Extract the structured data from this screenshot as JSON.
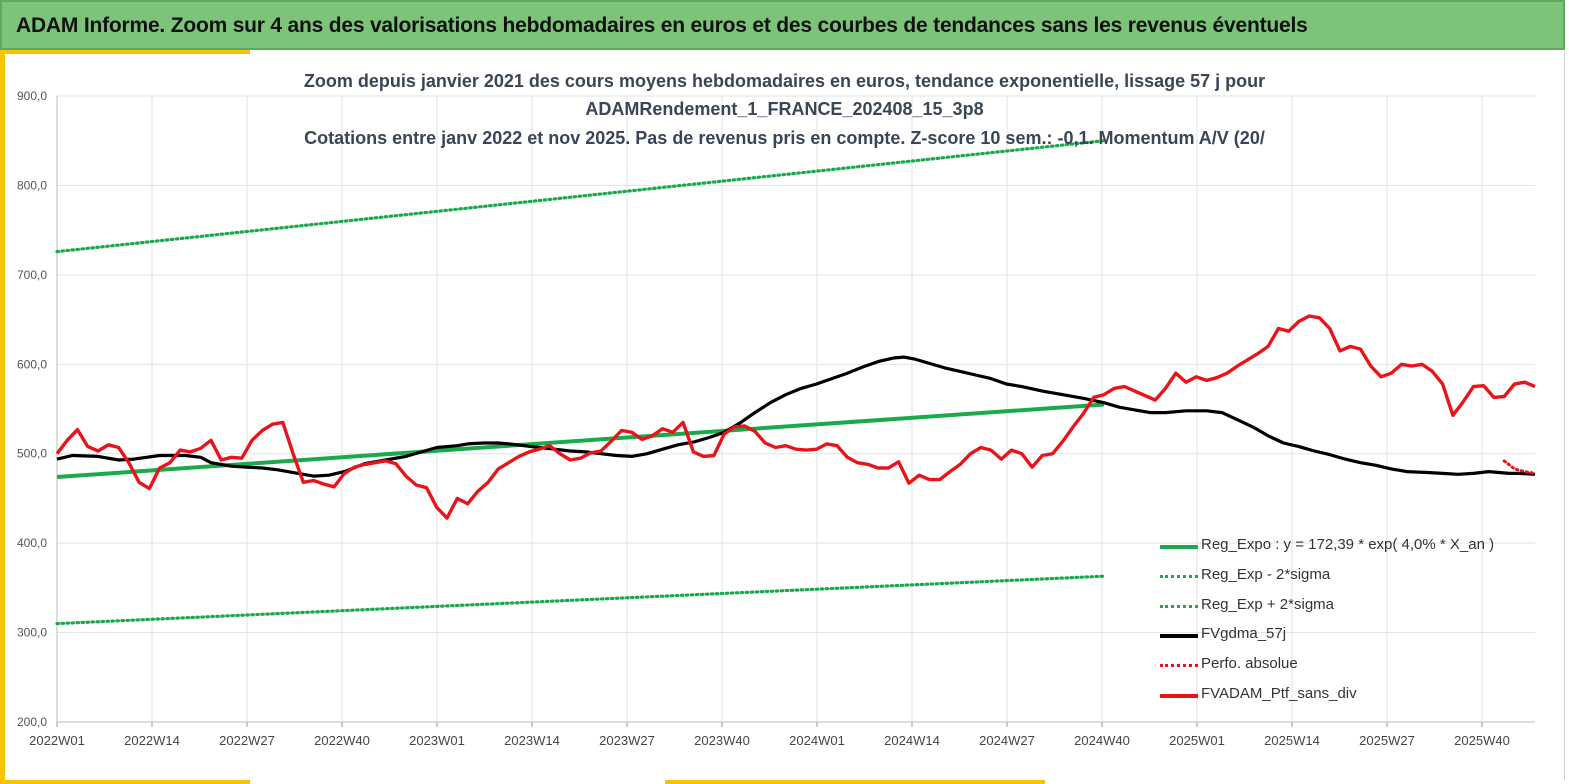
{
  "header": {
    "title": "ADAM Informe. Zoom sur 4 ans des valorisations hebdomadaires en euros et des courbes de tendances sans les revenus éventuels"
  },
  "colors": {
    "banner": "#7dc47a",
    "accent": "#f5c400",
    "trend": "#1aaa4b",
    "sigma": "#1aaa4b",
    "mma": "#000000",
    "perf": "#e8141a",
    "portfolio": "#e8141a",
    "grid": "#e2e2e2"
  },
  "chart_data": {
    "type": "line",
    "title_lines": [
      "Zoom depuis janvier 2021 des cours moyens hebdomadaires  en euros, tendance exponentielle, lissage 57 j pour",
      "ADAMRendement_1_FRANCE_202408_15_3p8",
      "Cotations entre janv 2022 et nov 2025. Pas de revenus pris en compte. Z-score 10 sem.: -0,1. Momentum A/V (20/"
    ],
    "xlabel": "",
    "ylabel": "",
    "ylim": [
      200,
      900
    ],
    "yticks": [
      "900,0",
      "800,0",
      "700,0",
      "600,0",
      "500,0",
      "400,0",
      "300,0",
      "200,0"
    ],
    "x_tick_labels": [
      "2022W01",
      "2022W14",
      "2022W27",
      "2022W40",
      "2023W01",
      "2023W14",
      "2023W27",
      "2023W40",
      "2024W01",
      "2024W14",
      "2024W27",
      "2024W40",
      "2025W01",
      "2025W14",
      "2025W27",
      "2025W40"
    ],
    "weeks_total": 204,
    "grid": true,
    "legend_position": "bottom-right",
    "series": [
      {
        "name": "Reg_Expo : y = 172,39 * exp( 4,0% *  X_an )",
        "style": "solid-green",
        "points": [
          [
            0,
            474
          ],
          [
            204,
            555
          ]
        ]
      },
      {
        "name": "Reg_Exp - 2*sigma",
        "style": "dotted-green",
        "points": [
          [
            0,
            310
          ],
          [
            204,
            363
          ]
        ]
      },
      {
        "name": "Reg_Exp + 2*sigma",
        "style": "dotted-green",
        "points": [
          [
            0,
            726
          ],
          [
            204,
            850
          ]
        ]
      },
      {
        "name": "FVgdma_57j",
        "style": "solid-black",
        "points": [
          [
            0,
            494
          ],
          [
            3,
            498
          ],
          [
            8,
            497
          ],
          [
            12,
            493
          ],
          [
            15,
            494
          ],
          [
            20,
            498
          ],
          [
            25,
            498
          ],
          [
            28,
            496
          ],
          [
            30,
            490
          ],
          [
            34,
            486
          ],
          [
            37,
            485
          ],
          [
            40,
            484
          ],
          [
            43,
            482
          ],
          [
            47,
            478
          ],
          [
            50,
            475
          ],
          [
            53,
            476
          ],
          [
            56,
            480
          ],
          [
            60,
            489
          ],
          [
            64,
            493
          ],
          [
            68,
            497
          ],
          [
            71,
            502
          ],
          [
            74,
            507
          ],
          [
            78,
            509
          ],
          [
            80,
            511
          ],
          [
            83,
            512
          ],
          [
            86,
            512
          ],
          [
            88,
            511
          ],
          [
            91,
            509
          ],
          [
            94,
            507
          ],
          [
            97,
            505
          ],
          [
            100,
            503
          ],
          [
            103,
            502
          ],
          [
            106,
            500
          ],
          [
            109,
            498
          ],
          [
            112,
            497
          ],
          [
            115,
            500
          ],
          [
            118,
            505
          ],
          [
            121,
            510
          ],
          [
            124,
            513
          ],
          [
            127,
            518
          ],
          [
            130,
            524
          ],
          [
            133,
            534
          ],
          [
            136,
            546
          ],
          [
            139,
            557
          ],
          [
            142,
            566
          ],
          [
            145,
            573
          ],
          [
            148,
            578
          ],
          [
            151,
            584
          ],
          [
            154,
            590
          ],
          [
            157,
            597
          ],
          [
            160,
            603
          ],
          [
            163,
            607
          ],
          [
            165,
            608
          ],
          [
            167,
            606
          ],
          [
            170,
            601
          ],
          [
            173,
            596
          ],
          [
            176,
            592
          ],
          [
            179,
            588
          ],
          [
            182,
            584
          ],
          [
            185,
            578
          ],
          [
            188,
            575
          ],
          [
            192,
            570
          ],
          [
            196,
            566
          ],
          [
            200,
            562
          ],
          [
            204,
            557
          ],
          [
            207,
            552
          ],
          [
            210,
            549
          ],
          [
            213,
            546
          ],
          [
            216,
            546
          ],
          [
            220,
            548
          ],
          [
            224,
            548
          ],
          [
            227,
            546
          ],
          [
            230,
            538
          ],
          [
            233,
            530
          ],
          [
            236,
            520
          ],
          [
            239,
            512
          ],
          [
            242,
            508
          ],
          [
            245,
            503
          ],
          [
            248,
            499
          ],
          [
            251,
            494
          ],
          [
            254,
            490
          ],
          [
            257,
            487
          ],
          [
            260,
            483
          ],
          [
            263,
            480
          ],
          [
            267,
            479
          ],
          [
            270,
            478
          ],
          [
            273,
            477
          ],
          [
            276,
            478
          ],
          [
            279,
            480
          ],
          [
            281,
            479
          ],
          [
            283,
            478
          ],
          [
            285,
            478
          ],
          [
            288,
            477
          ]
        ]
      },
      {
        "name": "Perfo. absolue",
        "style": "dotted-red",
        "points": [
          [
            282,
            492
          ],
          [
            284,
            483
          ],
          [
            286,
            480
          ],
          [
            288,
            478
          ]
        ]
      },
      {
        "name": "FVADAM_Ptf_sans_div",
        "style": "solid-red",
        "points": [
          [
            0,
            500
          ],
          [
            2,
            515
          ],
          [
            4,
            527
          ],
          [
            6,
            508
          ],
          [
            8,
            503
          ],
          [
            10,
            510
          ],
          [
            12,
            507
          ],
          [
            14,
            490
          ],
          [
            16,
            468
          ],
          [
            18,
            461
          ],
          [
            20,
            484
          ],
          [
            22,
            490
          ],
          [
            24,
            504
          ],
          [
            26,
            502
          ],
          [
            28,
            506
          ],
          [
            30,
            515
          ],
          [
            32,
            493
          ],
          [
            34,
            496
          ],
          [
            36,
            495
          ],
          [
            38,
            515
          ],
          [
            40,
            526
          ],
          [
            42,
            533
          ],
          [
            44,
            535
          ],
          [
            46,
            500
          ],
          [
            48,
            468
          ],
          [
            50,
            470
          ],
          [
            52,
            466
          ],
          [
            54,
            463
          ],
          [
            56,
            478
          ],
          [
            58,
            485
          ],
          [
            60,
            488
          ],
          [
            62,
            490
          ],
          [
            64,
            492
          ],
          [
            66,
            489
          ],
          [
            68,
            475
          ],
          [
            70,
            465
          ],
          [
            72,
            462
          ],
          [
            74,
            440
          ],
          [
            76,
            428
          ],
          [
            78,
            450
          ],
          [
            80,
            444
          ],
          [
            82,
            458
          ],
          [
            84,
            468
          ],
          [
            86,
            483
          ],
          [
            88,
            490
          ],
          [
            90,
            497
          ],
          [
            92,
            502
          ],
          [
            94,
            505
          ],
          [
            96,
            509
          ],
          [
            98,
            500
          ],
          [
            100,
            493
          ],
          [
            102,
            495
          ],
          [
            104,
            501
          ],
          [
            106,
            503
          ],
          [
            108,
            514
          ],
          [
            110,
            526
          ],
          [
            112,
            524
          ],
          [
            114,
            516
          ],
          [
            116,
            520
          ],
          [
            118,
            528
          ],
          [
            120,
            524
          ],
          [
            122,
            535
          ],
          [
            124,
            502
          ],
          [
            126,
            497
          ],
          [
            128,
            498
          ],
          [
            130,
            522
          ],
          [
            132,
            530
          ],
          [
            134,
            531
          ],
          [
            136,
            525
          ],
          [
            138,
            512
          ],
          [
            140,
            507
          ],
          [
            142,
            509
          ],
          [
            144,
            505
          ],
          [
            146,
            504
          ],
          [
            148,
            505
          ],
          [
            150,
            511
          ],
          [
            152,
            509
          ],
          [
            154,
            496
          ],
          [
            156,
            490
          ],
          [
            158,
            488
          ],
          [
            160,
            484
          ],
          [
            162,
            484
          ],
          [
            164,
            491
          ],
          [
            166,
            467
          ],
          [
            168,
            476
          ],
          [
            170,
            471
          ],
          [
            172,
            471
          ],
          [
            174,
            480
          ],
          [
            176,
            488
          ],
          [
            178,
            500
          ],
          [
            180,
            507
          ],
          [
            182,
            504
          ],
          [
            184,
            494
          ],
          [
            186,
            504
          ],
          [
            188,
            500
          ],
          [
            190,
            485
          ],
          [
            192,
            498
          ],
          [
            194,
            500
          ],
          [
            196,
            514
          ],
          [
            198,
            530
          ],
          [
            200,
            545
          ],
          [
            202,
            563
          ],
          [
            204,
            566
          ],
          [
            206,
            573
          ],
          [
            208,
            575
          ],
          [
            210,
            570
          ],
          [
            212,
            565
          ],
          [
            214,
            560
          ],
          [
            216,
            573
          ],
          [
            218,
            590
          ],
          [
            220,
            580
          ],
          [
            222,
            586
          ],
          [
            224,
            582
          ],
          [
            226,
            585
          ],
          [
            228,
            590
          ],
          [
            230,
            598
          ],
          [
            232,
            605
          ],
          [
            234,
            612
          ],
          [
            236,
            620
          ],
          [
            238,
            640
          ],
          [
            240,
            637
          ],
          [
            242,
            648
          ],
          [
            244,
            654
          ],
          [
            246,
            652
          ],
          [
            248,
            640
          ],
          [
            250,
            615
          ],
          [
            252,
            620
          ],
          [
            254,
            617
          ],
          [
            256,
            598
          ],
          [
            258,
            586
          ],
          [
            260,
            590
          ],
          [
            262,
            600
          ],
          [
            264,
            598
          ],
          [
            266,
            600
          ],
          [
            268,
            592
          ],
          [
            270,
            578
          ],
          [
            272,
            543
          ],
          [
            274,
            558
          ],
          [
            276,
            575
          ],
          [
            278,
            576
          ],
          [
            280,
            563
          ],
          [
            282,
            564
          ],
          [
            284,
            578
          ],
          [
            286,
            580
          ],
          [
            288,
            575
          ]
        ]
      }
    ]
  }
}
